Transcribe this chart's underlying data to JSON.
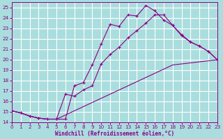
{
  "xlabel": "Windchill (Refroidissement éolien,°C)",
  "line_color": "#880088",
  "bg_color": "#aadddd",
  "grid_color": "#cceeee",
  "xlim": [
    0,
    23
  ],
  "ylim": [
    14,
    25.5
  ],
  "yticks": [
    14,
    15,
    16,
    17,
    18,
    19,
    20,
    21,
    22,
    23,
    24,
    25
  ],
  "xticks": [
    0,
    1,
    2,
    3,
    4,
    5,
    6,
    7,
    8,
    9,
    10,
    11,
    12,
    13,
    14,
    15,
    16,
    17,
    18,
    19,
    20,
    21,
    22,
    23
  ],
  "line1_x": [
    0,
    1,
    2,
    3,
    4,
    5,
    6,
    7,
    8,
    9,
    10,
    11,
    12,
    13,
    14,
    15,
    16,
    17,
    18,
    19,
    20,
    21,
    22,
    23
  ],
  "line1_y": [
    15.1,
    14.9,
    14.6,
    14.4,
    14.3,
    14.3,
    14.3,
    17.5,
    17.8,
    19.5,
    21.5,
    23.4,
    23.2,
    24.3,
    24.2,
    25.2,
    24.7,
    23.8,
    23.3,
    22.4,
    21.7,
    21.3,
    20.8,
    20.0
  ],
  "line2_x": [
    0,
    1,
    2,
    3,
    4,
    5,
    6,
    7,
    8,
    9,
    10,
    11,
    12,
    13,
    14,
    15,
    16,
    17,
    18,
    19,
    20,
    21,
    22,
    23
  ],
  "line2_y": [
    15.1,
    14.9,
    14.6,
    14.4,
    14.3,
    14.3,
    16.7,
    16.5,
    17.1,
    17.5,
    19.6,
    20.5,
    21.2,
    22.1,
    22.8,
    23.5,
    24.3,
    24.3,
    23.3,
    22.3,
    21.7,
    21.3,
    20.8,
    20.0
  ],
  "line3_x": [
    0,
    1,
    2,
    3,
    4,
    5,
    6,
    7,
    8,
    9,
    10,
    11,
    12,
    13,
    14,
    15,
    16,
    17,
    18,
    19,
    20,
    21,
    22,
    23
  ],
  "line3_y": [
    15.1,
    14.9,
    14.6,
    14.4,
    14.3,
    14.3,
    14.7,
    15.1,
    15.5,
    15.9,
    16.3,
    16.7,
    17.1,
    17.5,
    17.9,
    18.3,
    18.7,
    19.1,
    19.5,
    19.6,
    19.7,
    19.8,
    19.9,
    20.0
  ]
}
